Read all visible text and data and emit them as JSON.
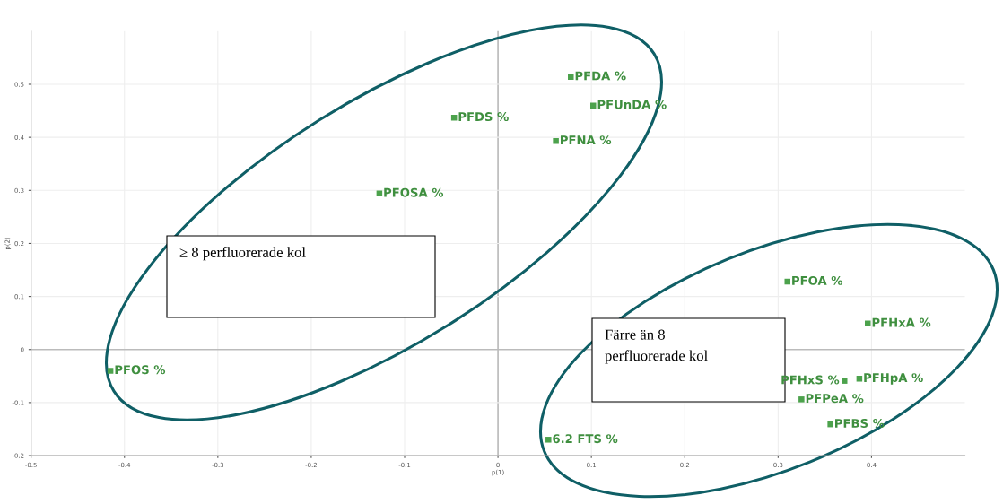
{
  "chart_data": {
    "type": "scatter",
    "xlabel": "p(1)",
    "ylabel": "p(2)",
    "series": [
      {
        "color": "#4ca24c",
        "x": [
          0.078,
          0.102,
          -0.047,
          0.062,
          -0.127,
          0.31,
          0.396,
          0.371,
          0.387,
          0.325,
          0.356,
          0.054,
          -0.415
        ],
        "values": [
          0.514,
          0.46,
          0.437,
          0.393,
          0.294,
          0.128,
          0.049,
          -0.059,
          -0.055,
          -0.094,
          -0.141,
          -0.17,
          -0.04
        ]
      }
    ],
    "marker": "square",
    "grid": true,
    "xlim": [
      -0.5,
      0.5
    ],
    "ylim": [
      -0.2,
      0.6
    ],
    "xticks": [
      -0.5,
      -0.4,
      -0.3,
      -0.2,
      -0.1,
      0,
      0.1,
      0.2,
      0.3,
      0.4
    ],
    "yticks": [
      -0.2,
      -0.1,
      0,
      0.1,
      0.2,
      0.3,
      0.4,
      0.5
    ],
    "annotations": [
      {
        "text": "PFDA %",
        "x": 0.078,
        "y": 0.514
      },
      {
        "text": "PFUnDA %",
        "x": 0.102,
        "y": 0.46
      },
      {
        "text": "PFDS %",
        "x": -0.047,
        "y": 0.437
      },
      {
        "text": "PFNA %",
        "x": 0.062,
        "y": 0.393
      },
      {
        "text": "PFOSA %",
        "x": -0.127,
        "y": 0.294
      },
      {
        "text": "PFOA %",
        "x": 0.31,
        "y": 0.128
      },
      {
        "text": "PFHxA %",
        "x": 0.396,
        "y": 0.049
      },
      {
        "text": "PFHxS %",
        "x": 0.371,
        "y": -0.059
      },
      {
        "text": "PFHpA %",
        "x": 0.387,
        "y": -0.055
      },
      {
        "text": "PFPeA %",
        "x": 0.325,
        "y": -0.094
      },
      {
        "text": "PFBS %",
        "x": 0.356,
        "y": -0.141
      },
      {
        "text": "6.2 FTS %",
        "x": 0.054,
        "y": -0.17
      },
      {
        "text": "PFOS %",
        "x": -0.415,
        "y": -0.04
      },
      "≥ 8 perfluorerade kol",
      "Färre än 8\nperfluorerade kol"
    ]
  }
}
